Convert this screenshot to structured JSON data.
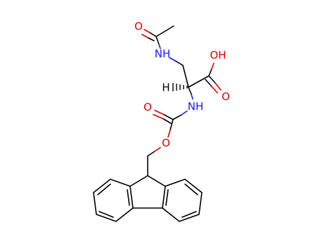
{
  "atoms": [
    {
      "label": "O"
    },
    {
      "label": "NH"
    },
    {
      "label": "OH"
    },
    {
      "label": "O"
    },
    {
      "label": "H"
    },
    {
      "label": "NH"
    },
    {
      "label": "O"
    },
    {
      "label": "O"
    }
  ]
}
